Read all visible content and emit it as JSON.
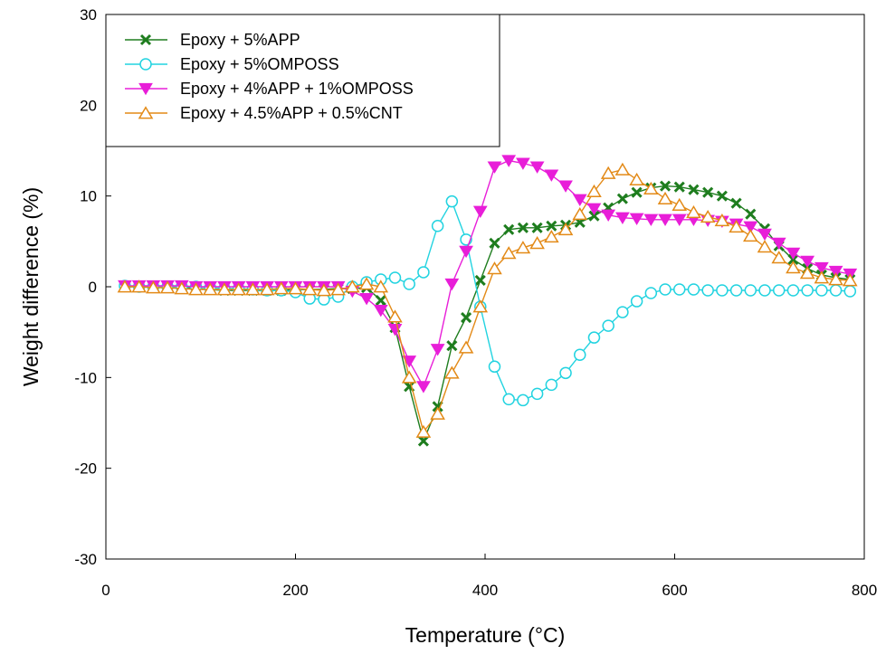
{
  "chart_data": {
    "type": "line",
    "title": "",
    "xlabel": "Temperature (°C)",
    "ylabel": "Weight difference (%)",
    "xlim": [
      0,
      800
    ],
    "ylim": [
      -30,
      30
    ],
    "x_ticks": [
      "0",
      "200",
      "400",
      "600",
      "800"
    ],
    "y_ticks": [
      "-30",
      "-20",
      "-10",
      "0",
      "10",
      "20",
      "30"
    ],
    "grid": false,
    "legend_position": "top-left",
    "series": [
      {
        "name": "Epoxy + 5%APP",
        "color": "#1e7d1e",
        "marker": "x",
        "x": [
          20,
          35,
          50,
          65,
          80,
          95,
          110,
          125,
          140,
          155,
          170,
          185,
          200,
          215,
          230,
          245,
          260,
          275,
          290,
          305,
          320,
          335,
          350,
          365,
          380,
          395,
          410,
          425,
          440,
          455,
          470,
          485,
          500,
          515,
          530,
          545,
          560,
          575,
          590,
          605,
          620,
          635,
          650,
          665,
          680,
          695,
          710,
          725,
          740,
          755,
          770,
          785
        ],
        "y": [
          0,
          0,
          0,
          0,
          0,
          -0.2,
          -0.3,
          -0.4,
          -0.4,
          -0.4,
          -0.4,
          -0.4,
          -0.3,
          -0.3,
          -0.3,
          -0.2,
          -0.2,
          -0.1,
          -1.5,
          -4.5,
          -11,
          -17,
          -13.2,
          -6.5,
          -3.4,
          0.7,
          4.8,
          6.3,
          6.5,
          6.5,
          6.7,
          6.8,
          7.1,
          7.8,
          8.7,
          9.7,
          10.4,
          10.9,
          11.1,
          11,
          10.7,
          10.4,
          10,
          9.2,
          8,
          6.4,
          4.5,
          3,
          2,
          1.3,
          1,
          0.8
        ]
      },
      {
        "name": "Epoxy + 5%OMPOSS",
        "color": "#22d3e0",
        "marker": "circle",
        "x": [
          20,
          35,
          50,
          65,
          80,
          95,
          110,
          125,
          140,
          155,
          170,
          185,
          200,
          215,
          230,
          245,
          260,
          275,
          290,
          305,
          320,
          335,
          350,
          365,
          380,
          395,
          410,
          425,
          440,
          455,
          470,
          485,
          500,
          515,
          530,
          545,
          560,
          575,
          590,
          605,
          620,
          635,
          650,
          665,
          680,
          695,
          710,
          725,
          740,
          755,
          770,
          785
        ],
        "y": [
          0.1,
          0,
          0,
          0,
          0,
          0,
          -0.1,
          -0.2,
          -0.2,
          -0.3,
          -0.4,
          -0.4,
          -0.6,
          -1.3,
          -1.4,
          -1.1,
          0,
          0.5,
          0.8,
          1,
          0.3,
          1.6,
          6.7,
          9.4,
          5.2,
          -2.2,
          -8.8,
          -12.4,
          -12.5,
          -11.8,
          -10.8,
          -9.5,
          -7.5,
          -5.6,
          -4.3,
          -2.8,
          -1.6,
          -0.7,
          -0.3,
          -0.3,
          -0.3,
          -0.4,
          -0.4,
          -0.4,
          -0.4,
          -0.4,
          -0.4,
          -0.4,
          -0.4,
          -0.4,
          -0.4,
          -0.5
        ]
      },
      {
        "name": "Epoxy + 4%APP + 1%OMPOSS",
        "color": "#e81ed8",
        "marker": "triangle-down",
        "x": [
          20,
          35,
          50,
          65,
          80,
          95,
          110,
          125,
          140,
          155,
          170,
          185,
          200,
          215,
          230,
          245,
          260,
          275,
          290,
          305,
          320,
          335,
          350,
          365,
          380,
          395,
          410,
          425,
          440,
          455,
          470,
          485,
          500,
          515,
          530,
          545,
          560,
          575,
          590,
          605,
          620,
          635,
          650,
          665,
          680,
          695,
          710,
          725,
          740,
          755,
          770,
          785
        ],
        "y": [
          0.1,
          0.1,
          0.1,
          0.1,
          0.1,
          0,
          0,
          0,
          0,
          0,
          0,
          0,
          0,
          0,
          0,
          0,
          -0.5,
          -1.3,
          -2.6,
          -4.7,
          -8.2,
          -11,
          -6.9,
          0.3,
          3.9,
          8.3,
          13.2,
          13.9,
          13.6,
          13.2,
          12.3,
          11.1,
          9.6,
          8.6,
          7.9,
          7.6,
          7.5,
          7.4,
          7.4,
          7.4,
          7.4,
          7.3,
          7.2,
          6.9,
          6.6,
          5.8,
          4.8,
          3.7,
          2.8,
          2.1,
          1.7,
          1.4
        ]
      },
      {
        "name": "Epoxy + 4.5%APP + 0.5%CNT",
        "color": "#e38a17",
        "marker": "triangle-up",
        "x": [
          20,
          35,
          50,
          65,
          80,
          95,
          110,
          125,
          140,
          155,
          170,
          185,
          200,
          215,
          230,
          245,
          260,
          275,
          290,
          305,
          320,
          335,
          350,
          365,
          380,
          395,
          410,
          425,
          440,
          455,
          470,
          485,
          500,
          515,
          530,
          545,
          560,
          575,
          590,
          605,
          620,
          635,
          650,
          665,
          680,
          695,
          710,
          725,
          740,
          755,
          770,
          785
        ],
        "y": [
          0,
          0,
          -0.1,
          -0.1,
          -0.2,
          -0.3,
          -0.3,
          -0.3,
          -0.3,
          -0.3,
          -0.3,
          -0.2,
          -0.2,
          -0.3,
          -0.4,
          -0.3,
          0,
          0.3,
          0,
          -3.3,
          -10,
          -16,
          -14,
          -9.5,
          -6.7,
          -2.2,
          2,
          3.7,
          4.3,
          4.8,
          5.5,
          6.3,
          8,
          10.5,
          12.5,
          12.9,
          11.8,
          10.8,
          9.7,
          9,
          8.2,
          7.7,
          7.3,
          6.6,
          5.6,
          4.4,
          3.2,
          2.1,
          1.5,
          1,
          0.8,
          0.7
        ]
      }
    ]
  }
}
